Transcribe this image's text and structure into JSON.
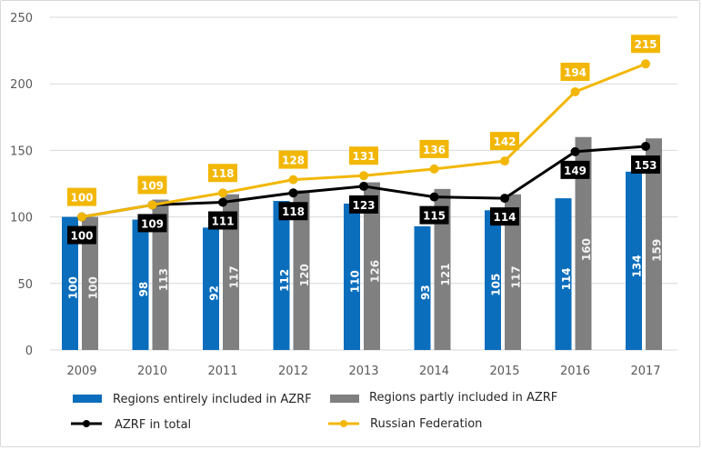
{
  "chart_data": {
    "type": "bar",
    "title": "",
    "xlabel": "",
    "ylabel": "",
    "ylim": [
      0,
      250
    ],
    "yticks": [
      0,
      50,
      100,
      150,
      200,
      250
    ],
    "grid": true,
    "legend_position": "bottom",
    "categories": [
      "2009",
      "2010",
      "2011",
      "2012",
      "2013",
      "2014",
      "2015",
      "2016",
      "2017"
    ],
    "series": [
      {
        "name": "Regions entirely included in AZRF",
        "kind": "bar",
        "color": "#0a6ebd",
        "values": [
          100,
          98,
          92,
          112,
          110,
          93,
          105,
          114,
          134
        ]
      },
      {
        "name": "Regions partly included in AZRF",
        "kind": "bar",
        "color": "#808080",
        "values": [
          100,
          113,
          117,
          120,
          126,
          121,
          117,
          160,
          159
        ]
      },
      {
        "name": "AZRF in total",
        "kind": "line",
        "color": "#000000",
        "values": [
          100,
          109,
          111,
          118,
          123,
          115,
          114,
          149,
          153
        ]
      },
      {
        "name": "Russian Federation",
        "kind": "line",
        "color": "#f2b705",
        "values": [
          100,
          109,
          118,
          128,
          131,
          136,
          142,
          194,
          215
        ]
      }
    ]
  }
}
